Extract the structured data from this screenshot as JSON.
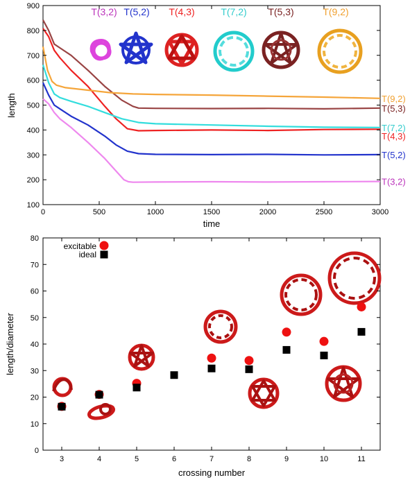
{
  "chart_data": [
    {
      "type": "line",
      "xlabel": "time",
      "ylabel": "length",
      "xlim": [
        0,
        3000
      ],
      "ylim": [
        100,
        900
      ],
      "xticks": [
        0,
        500,
        1000,
        1500,
        2000,
        2500,
        3000
      ],
      "yticks": [
        100,
        200,
        300,
        400,
        500,
        600,
        700,
        800,
        900
      ],
      "grid": false,
      "series": [
        {
          "name": "T(3,2)",
          "color": "#ee88ee",
          "label_color": "#bb33bb",
          "x": [
            0,
            50,
            100,
            150,
            250,
            400,
            550,
            650,
            720,
            760,
            800,
            1000,
            1500,
            2000,
            2500,
            3000
          ],
          "y": [
            525,
            505,
            470,
            445,
            410,
            350,
            285,
            235,
            200,
            192,
            190,
            191,
            192,
            191,
            192,
            193
          ]
        },
        {
          "name": "T(5,2)",
          "color": "#2233cc",
          "label_color": "#2233cc",
          "x": [
            0,
            50,
            100,
            150,
            250,
            400,
            550,
            650,
            750,
            850,
            1000,
            1500,
            2000,
            2500,
            3000
          ],
          "y": [
            590,
            540,
            500,
            485,
            455,
            420,
            375,
            340,
            315,
            305,
            302,
            301,
            302,
            300,
            301
          ]
        },
        {
          "name": "T(4,3)",
          "color": "#ee2222",
          "label_color": "#ee2222",
          "x": [
            0,
            50,
            100,
            150,
            250,
            400,
            550,
            650,
            750,
            850,
            1000,
            1500,
            2000,
            2500,
            3000
          ],
          "y": [
            808,
            775,
            720,
            690,
            640,
            575,
            495,
            445,
            405,
            397,
            398,
            400,
            398,
            402,
            403
          ]
        },
        {
          "name": "T(7,2)",
          "color": "#33dddd",
          "label_color": "#33cccc",
          "x": [
            0,
            50,
            100,
            150,
            250,
            400,
            550,
            700,
            850,
            1000,
            1500,
            2000,
            2500,
            3000
          ],
          "y": [
            662,
            590,
            545,
            530,
            515,
            495,
            470,
            445,
            430,
            425,
            420,
            415,
            411,
            410
          ]
        },
        {
          "name": "T(5,3)",
          "color": "#994444",
          "label_color": "#7a2222",
          "x": [
            0,
            50,
            100,
            150,
            250,
            400,
            550,
            700,
            800,
            850,
            1000,
            1500,
            2000,
            2500,
            3000
          ],
          "y": [
            842,
            800,
            745,
            730,
            700,
            640,
            575,
            520,
            495,
            488,
            487,
            486,
            487,
            485,
            488
          ]
        },
        {
          "name": "T(9,2)",
          "color": "#f5a53a",
          "label_color": "#f0a030",
          "x": [
            0,
            40,
            80,
            120,
            200,
            400,
            600,
            800,
            1000,
            1500,
            2000,
            2500,
            3000
          ],
          "y": [
            735,
            640,
            595,
            580,
            570,
            560,
            550,
            545,
            543,
            540,
            536,
            532,
            527
          ]
        }
      ],
      "legend": {
        "placement": "top",
        "entries": [
          "T(3,2)",
          "T(5,2)",
          "T(4,3)",
          "T(7,2)",
          "T(5,3)",
          "T(9,2)"
        ]
      },
      "end_labels": [
        "T(9,2)",
        "T(5,3)",
        "T(7,2)",
        "T(4,3)",
        "T(5,2)",
        "T(3,2)"
      ]
    },
    {
      "type": "scatter",
      "xlabel": "crossing number",
      "ylabel": "length/diameter",
      "xlim": [
        2.5,
        11.5
      ],
      "ylim": [
        0,
        80
      ],
      "xticks": [
        3,
        4,
        5,
        6,
        7,
        8,
        9,
        10,
        11
      ],
      "yticks": [
        0,
        10,
        20,
        30,
        40,
        50,
        60,
        70,
        80
      ],
      "grid": false,
      "legend": {
        "placement": "top-left"
      },
      "series": [
        {
          "name": "excitable",
          "marker": "circle",
          "color": "#ee1111",
          "x": [
            3,
            4,
            5,
            7,
            8,
            9,
            10,
            11
          ],
          "y": [
            16.5,
            21,
            25.2,
            34.7,
            33.8,
            44.5,
            41,
            54
          ]
        },
        {
          "name": "ideal",
          "marker": "square",
          "color": "#000000",
          "x": [
            3,
            4,
            5,
            6,
            7,
            8,
            9,
            10,
            11
          ],
          "y": [
            16.4,
            20.9,
            23.6,
            28.3,
            30.8,
            30.5,
            37.8,
            35.7,
            44.6
          ]
        }
      ]
    }
  ]
}
